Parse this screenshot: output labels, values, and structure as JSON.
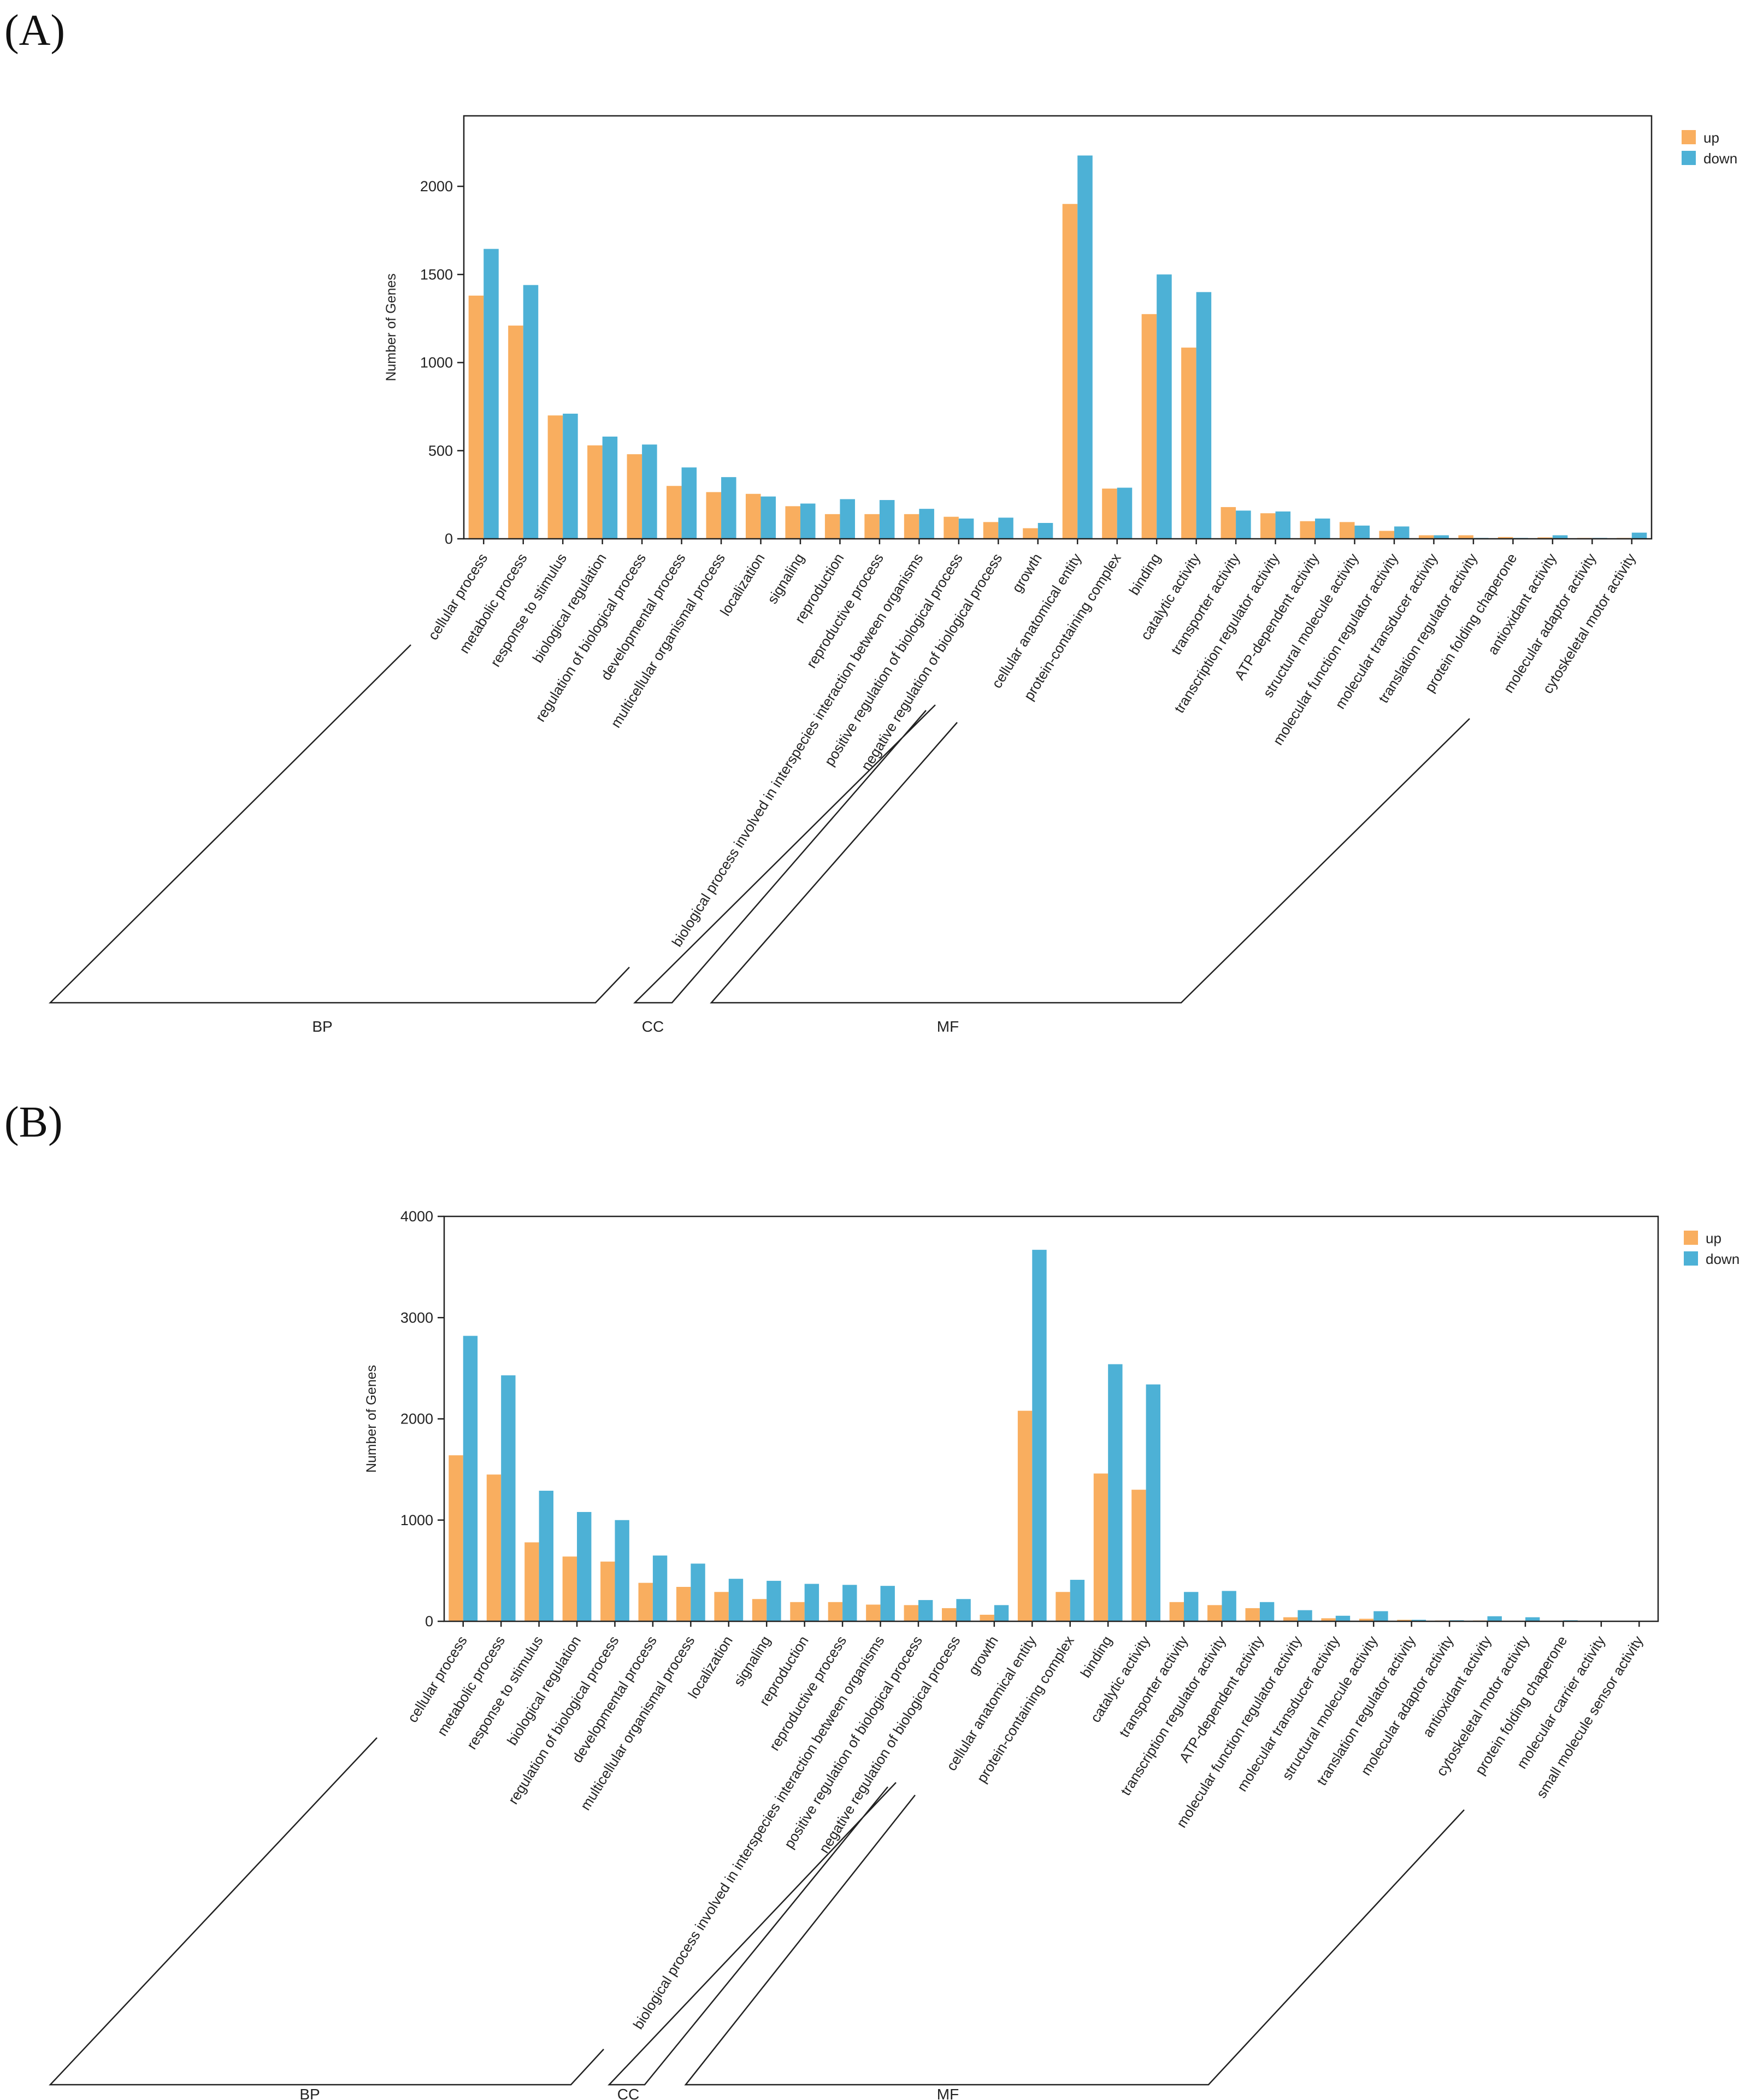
{
  "figure": {
    "colors": {
      "up": "#F9AE5F",
      "down": "#4DB1D6"
    }
  },
  "chart_data": [
    {
      "type": "bar",
      "panel_label": "(A)",
      "title": "",
      "xlabel": "",
      "ylabel": "Number of Genes",
      "ylim": [
        0,
        2400
      ],
      "yticks": [
        0,
        500,
        1000,
        1500,
        2000
      ],
      "grid": false,
      "legend": {
        "position": "top-right",
        "entries": [
          "up",
          "down"
        ]
      },
      "categories": [
        "cellular process",
        "metabolic process",
        "response to stimulus",
        "biological regulation",
        "regulation of biological process",
        "developmental process",
        "multicellular organismal process",
        "localization",
        "signaling",
        "reproduction",
        "reproductive process",
        "biological process involved in interspecies interaction between organisms",
        "positive regulation of biological process",
        "negative regulation of biological process",
        "growth",
        "cellular anatomical entity",
        "protein-containing complex",
        "binding",
        "catalytic activity",
        "transporter activity",
        "transcription regulator activity",
        "ATP-dependent activity",
        "structural molecule activity",
        "molecular function regulator activity",
        "molecular transducer activity",
        "translation regulator activity",
        "protein folding chaperone",
        "antioxidant activity",
        "molecular adaptor activity",
        "cytoskeletal motor activity"
      ],
      "series": [
        {
          "name": "up",
          "values": [
            1380,
            1210,
            700,
            530,
            480,
            300,
            265,
            255,
            185,
            140,
            140,
            140,
            125,
            95,
            60,
            1900,
            285,
            1275,
            1085,
            180,
            145,
            100,
            95,
            45,
            20,
            20,
            10,
            8,
            5,
            5
          ]
        },
        {
          "name": "down",
          "values": [
            1645,
            1440,
            710,
            580,
            535,
            405,
            350,
            240,
            200,
            225,
            220,
            170,
            115,
            120,
            90,
            2175,
            290,
            1500,
            1400,
            160,
            155,
            115,
            75,
            70,
            20,
            5,
            5,
            20,
            5,
            35
          ]
        }
      ],
      "groups": [
        {
          "name": "BP",
          "from": 0,
          "to": 14
        },
        {
          "name": "CC",
          "from": 15,
          "to": 16
        },
        {
          "name": "MF",
          "from": 17,
          "to": 29
        }
      ]
    },
    {
      "type": "bar",
      "panel_label": "(B)",
      "title": "",
      "xlabel": "",
      "ylabel": "Number of Genes",
      "ylim": [
        0,
        4000
      ],
      "yticks": [
        0,
        1000,
        2000,
        3000,
        4000
      ],
      "grid": false,
      "legend": {
        "position": "top-right",
        "entries": [
          "up",
          "down"
        ]
      },
      "categories": [
        "cellular process",
        "metabolic process",
        "response to stimulus",
        "biological regulation",
        "regulation of biological process",
        "developmental process",
        "multicellular organismal process",
        "localization",
        "signaling",
        "reproduction",
        "reproductive process",
        "biological process involved in interspecies interaction between organisms",
        "positive regulation of biological process",
        "negative regulation of biological process",
        "growth",
        "cellular anatomical entity",
        "protein-containing complex",
        "binding",
        "catalytic activity",
        "transporter activity",
        "transcription regulator activity",
        "ATP-dependent activity",
        "molecular function regulator activity",
        "molecular transducer activity",
        "structural molecule activity",
        "translation regulator activity",
        "molecular adaptor activity",
        "antioxidant activity",
        "cytoskeletal motor activity",
        "protein folding chaperone",
        "molecular carrier activity",
        "small molecule sensor activity"
      ],
      "series": [
        {
          "name": "up",
          "values": [
            1640,
            1450,
            780,
            640,
            590,
            380,
            340,
            290,
            220,
            190,
            190,
            165,
            160,
            130,
            65,
            2080,
            290,
            1460,
            1300,
            190,
            160,
            130,
            40,
            30,
            25,
            15,
            8,
            8,
            5,
            5,
            3,
            3
          ]
        },
        {
          "name": "down",
          "values": [
            2820,
            2430,
            1290,
            1080,
            1000,
            650,
            570,
            420,
            400,
            370,
            360,
            350,
            210,
            220,
            160,
            3670,
            410,
            2540,
            2340,
            290,
            300,
            190,
            110,
            55,
            100,
            15,
            10,
            50,
            40,
            10,
            5,
            5
          ]
        }
      ],
      "groups": [
        {
          "name": "BP",
          "from": 0,
          "to": 14
        },
        {
          "name": "CC",
          "from": 15,
          "to": 16
        },
        {
          "name": "MF",
          "from": 17,
          "to": 31
        }
      ]
    }
  ]
}
